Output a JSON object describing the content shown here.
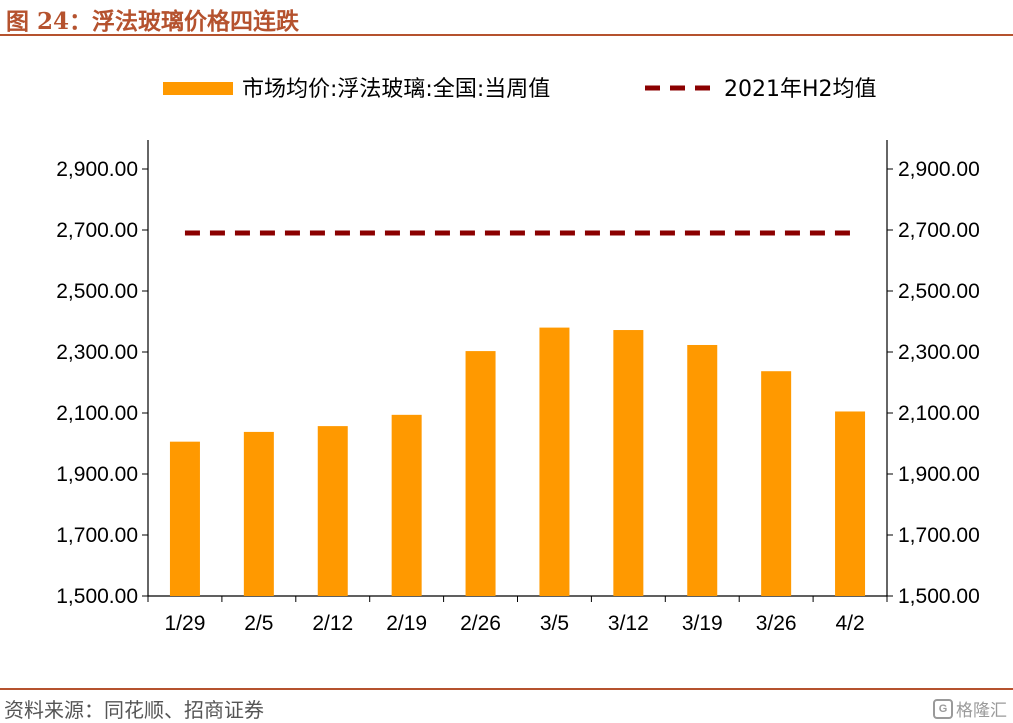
{
  "header": {
    "title": "图 24：浮法玻璃价格四连跌"
  },
  "footer": {
    "source": "资料来源：同花顺、招商证券",
    "watermark": "格隆汇"
  },
  "colors": {
    "accent": "#b5522e",
    "bar": "#ff9900",
    "avg_line": "#8b0000"
  },
  "chart_data": {
    "type": "bar",
    "title": "",
    "xlabel": "",
    "ylabel": "",
    "categories": [
      "1/29",
      "2/5",
      "2/12",
      "2/19",
      "2/26",
      "3/5",
      "3/12",
      "3/19",
      "3/26",
      "4/2"
    ],
    "series": [
      {
        "name": "市场均价:浮法玻璃:全国:当周值",
        "kind": "bar",
        "values": [
          2006,
          2038,
          2057,
          2094,
          2303,
          2380,
          2372,
          2323,
          2237,
          2105
        ]
      },
      {
        "name": "2021年H2均值",
        "kind": "dashed-line",
        "values": [
          2690,
          2690,
          2690,
          2690,
          2690,
          2690,
          2690,
          2690,
          2690,
          2690
        ]
      }
    ],
    "ylim": [
      1500,
      3000
    ],
    "yticks": [
      "1,500.00",
      "1,700.00",
      "1,900.00",
      "2,100.00",
      "2,300.00",
      "2,500.00",
      "2,700.00",
      "2,900.00"
    ],
    "ytick_values": [
      1500,
      1700,
      1900,
      2100,
      2300,
      2500,
      2700,
      2900
    ],
    "secondary_y_axis": true,
    "grid": false,
    "legend": "top"
  }
}
